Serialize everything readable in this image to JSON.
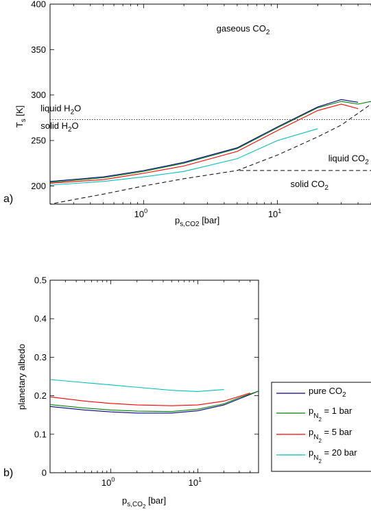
{
  "chart_data": [
    {
      "panel_label": "a)",
      "type": "line",
      "xscale": "log",
      "xlim": [
        0.2,
        50
      ],
      "ylim": [
        180,
        400
      ],
      "xlabel": {
        "main": "p",
        "sub": "s,CO2",
        "unit": " [bar]"
      },
      "ylabel": {
        "main": "T",
        "sub": "s",
        "unit": " [K]"
      },
      "xtick_labels": [
        {
          "value": 1,
          "base": "10",
          "exp": "0"
        },
        {
          "value": 10,
          "base": "10",
          "exp": "1"
        }
      ],
      "yticks": [
        200,
        250,
        300,
        350,
        400
      ],
      "annotations": [
        {
          "name": "gaseous-co2",
          "parts": [
            "gaseous CO",
            "2",
            ""
          ],
          "x": 3.5,
          "y": 370
        },
        {
          "name": "liquid-h2o",
          "parts": [
            "liquid H",
            "2",
            "O"
          ],
          "x": 0.17,
          "y": 282
        },
        {
          "name": "solid-h2o",
          "parts": [
            "solid H",
            "2",
            "O"
          ],
          "x": 0.17,
          "y": 263
        },
        {
          "name": "liquid-co2",
          "parts": [
            "liquid CO",
            "2",
            ""
          ],
          "x": 24,
          "y": 227
        },
        {
          "name": "solid-co2",
          "parts": [
            "solid CO",
            "2",
            ""
          ],
          "x": 12.5,
          "y": 199
        }
      ],
      "reference_lines": [
        {
          "name": "h2o-freezing-line",
          "style": "dotted",
          "x": [
            0.2,
            50
          ],
          "y": [
            273,
            273
          ]
        },
        {
          "name": "co2-saturation-curve",
          "style": "dashed",
          "x": [
            0.12,
            0.2,
            0.3,
            0.5,
            1,
            2,
            3,
            5,
            10,
            20,
            30,
            50
          ],
          "y": [
            176,
            180,
            185,
            191,
            200,
            208,
            212,
            217,
            234,
            254,
            267,
            290
          ]
        },
        {
          "name": "co2-liquid-solid-boundary",
          "style": "dashed",
          "x": [
            5.2,
            50
          ],
          "y": [
            217,
            217
          ]
        }
      ],
      "series": [
        {
          "name": "pure CO2",
          "color": "#00008b",
          "x": [
            0.2,
            0.5,
            1,
            2,
            5,
            10,
            20,
            30,
            40
          ],
          "y": [
            205,
            210,
            217,
            226,
            242,
            265,
            287,
            295,
            292
          ]
        },
        {
          "name": "p_N2 = 1 bar",
          "color": "#007f00",
          "x": [
            0.2,
            0.5,
            1,
            2,
            5,
            10,
            20,
            30,
            40,
            50
          ],
          "y": [
            204,
            209,
            216,
            225,
            241,
            264,
            286,
            293,
            290,
            293
          ]
        },
        {
          "name": "p_N2 = 5 bar",
          "color": "#ff0000",
          "x": [
            0.2,
            0.5,
            1,
            2,
            5,
            10,
            20,
            30,
            40
          ],
          "y": [
            203,
            207,
            214,
            222,
            238,
            261,
            283,
            290,
            285
          ]
        },
        {
          "name": "p_N2 = 20 bar",
          "color": "#00bfbf",
          "x": [
            0.2,
            0.5,
            1,
            2,
            5,
            10,
            20
          ],
          "y": [
            201,
            205,
            210,
            216,
            230,
            250,
            263
          ]
        }
      ]
    },
    {
      "panel_label": "b)",
      "type": "line",
      "xscale": "log",
      "xlim": [
        0.2,
        50
      ],
      "ylim": [
        0,
        0.5
      ],
      "xlabel": {
        "main": "p",
        "sub": "s,CO",
        "subsub": "2",
        "unit": " [bar]"
      },
      "ylabel": "planetary albedo",
      "xtick_labels": [
        {
          "value": 1,
          "base": "10",
          "exp": "0"
        },
        {
          "value": 10,
          "base": "10",
          "exp": "1"
        }
      ],
      "ytick_labels": [
        "0",
        "0.1",
        "0.2",
        "0.3",
        "0.4",
        "0.5"
      ],
      "ytick_values": [
        0,
        0.1,
        0.2,
        0.3,
        0.4,
        0.5
      ],
      "legend_position": "outside right",
      "legend": [
        {
          "text": "pure CO",
          "sub": "2",
          "suffix": ""
        },
        {
          "text": "p",
          "sub": "N",
          "subsub": "2",
          "suffix": " = 1 bar"
        },
        {
          "text": "p",
          "sub": "N",
          "subsub": "2",
          "suffix": " = 5 bar"
        },
        {
          "text": "p",
          "sub": "N",
          "subsub": "2",
          "suffix": " = 20 bar"
        }
      ],
      "series": [
        {
          "name": "pure CO2",
          "color": "#00008b",
          "x": [
            0.2,
            0.5,
            1,
            2,
            5,
            10,
            20,
            30,
            50
          ],
          "y": [
            0.172,
            0.163,
            0.158,
            0.155,
            0.155,
            0.161,
            0.176,
            0.192,
            0.212
          ]
        },
        {
          "name": "p_N2 = 1 bar",
          "color": "#007f00",
          "x": [
            0.2,
            0.5,
            1,
            2,
            5,
            10,
            20,
            30,
            50
          ],
          "y": [
            0.177,
            0.168,
            0.163,
            0.16,
            0.159,
            0.165,
            0.179,
            0.195,
            0.212
          ]
        },
        {
          "name": "p_N2 = 5 bar",
          "color": "#ff0000",
          "x": [
            0.2,
            0.5,
            1,
            2,
            5,
            10,
            20,
            40
          ],
          "y": [
            0.197,
            0.186,
            0.18,
            0.176,
            0.174,
            0.176,
            0.186,
            0.207
          ]
        },
        {
          "name": "p_N2 = 20 bar",
          "color": "#00bfbf",
          "x": [
            0.2,
            0.5,
            1,
            2,
            5,
            10,
            20
          ],
          "y": [
            0.242,
            0.234,
            0.228,
            0.222,
            0.214,
            0.211,
            0.216
          ]
        }
      ]
    }
  ]
}
